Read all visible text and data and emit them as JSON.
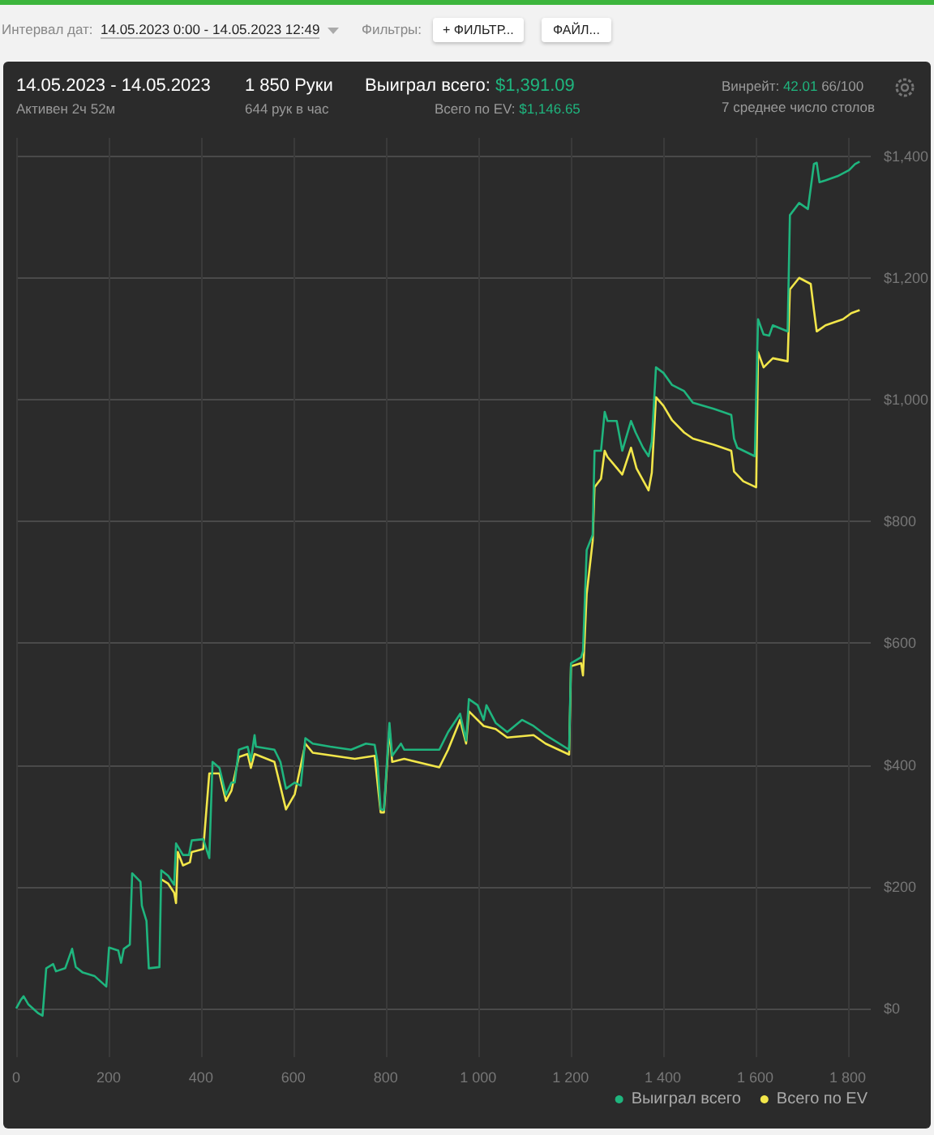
{
  "chart_data": {
    "type": "line",
    "title": "14.05.2023 - 14.05.2023",
    "annotations": [
      "Интервал дат:",
      "14.05.2023 0:00 - 14.05.2023 12:49",
      "Фильтры:",
      "+ ФИЛЬТР...",
      "ФАЙЛ...",
      "Активен 2ч 52м",
      "1 850 Руки",
      "644 рук в час",
      "Выиграл всего: $1,391.09",
      "Всего по EV: $1,146.65",
      "Винрейт: 42.01 66/100",
      "7 среднее число столов"
    ],
    "xlim": [
      0,
      1850
    ],
    "xticks": [
      0,
      200,
      400,
      600,
      800,
      {
        "value": 1000,
        "label": "1 000"
      },
      {
        "value": 1200,
        "label": "1 200"
      },
      {
        "value": 1400,
        "label": "1 400"
      },
      {
        "value": 1600,
        "label": "1 600"
      },
      {
        "value": 1800,
        "label": "1 800"
      }
    ],
    "ylim": [
      -80,
      1430
    ],
    "yticks": [
      {
        "value": 0,
        "label": "$0"
      },
      {
        "value": 200,
        "label": "$200"
      },
      {
        "value": 400,
        "label": "$400"
      },
      {
        "value": 600,
        "label": "$600"
      },
      {
        "value": 800,
        "label": "$800"
      },
      {
        "value": 1000,
        "label": "$1,000"
      },
      {
        "value": 1200,
        "label": "$1,200"
      },
      {
        "value": 1400,
        "label": "$1,400"
      }
    ],
    "grid": true,
    "legend": "bottom right",
    "marker": "none",
    "series": [
      {
        "name": "Выиграл всего",
        "color": "#1fb57e",
        "x": [
          0,
          10,
          16,
          26,
          48,
          57,
          65,
          80,
          86,
          106,
          121,
          129,
          144,
          170,
          195,
          201,
          221,
          227,
          233,
          246,
          251,
          269,
          272,
          282,
          287,
          310,
          314,
          329,
          342,
          346,
          361,
          374,
          380,
          405,
          418,
          425,
          440,
          454,
          466,
          473,
          482,
          501,
          508,
          516,
          519,
          559,
          572,
          584,
          603,
          616,
          626,
          642,
          680,
          725,
          757,
          776,
          782,
          789,
          796,
          808,
          814,
          833,
          840,
          916,
          935,
          961,
          974,
          980,
          999,
          1012,
          1018,
          1038,
          1063,
          1095,
          1120,
          1146,
          1197,
          1201,
          1223,
          1227,
          1235,
          1248,
          1252,
          1266,
          1274,
          1280,
          1300,
          1312,
          1331,
          1341,
          1357,
          1369,
          1376,
          1385,
          1401,
          1420,
          1446,
          1465,
          1510,
          1548,
          1554,
          1561,
          1599,
          1606,
          1618,
          1630,
          1638,
          1670,
          1675,
          1695,
          1714,
          1727,
          1733,
          1739,
          1752,
          1778,
          1803,
          1816,
          1826
        ],
        "values": [
          0,
          14,
          20,
          7,
          -8,
          -12,
          66,
          73,
          61,
          66,
          98,
          68,
          59,
          53,
          36,
          100,
          95,
          75,
          98,
          105,
          222,
          208,
          169,
          144,
          66,
          68,
          227,
          218,
          203,
          271,
          252,
          252,
          276,
          278,
          247,
          405,
          395,
          351,
          371,
          371,
          425,
          430,
          407,
          449,
          430,
          425,
          405,
          361,
          371,
          366,
          444,
          435,
          430,
          425,
          435,
          433,
          405,
          327,
          326,
          469,
          415,
          435,
          425,
          425,
          454,
          484,
          440,
          508,
          498,
          474,
          498,
          469,
          454,
          474,
          464,
          449,
          425,
          567,
          577,
          587,
          753,
          778,
          916,
          916,
          980,
          965,
          965,
          916,
          965,
          946,
          921,
          907,
          931,
          1053,
          1044,
          1024,
          1014,
          995,
          985,
          975,
          936,
          921,
          907,
          1132,
          1107,
          1105,
          1122,
          1112,
          1303,
          1323,
          1313,
          1387,
          1389,
          1357,
          1360,
          1367,
          1377,
          1387,
          1391
        ]
      },
      {
        "name": "Всего по EV",
        "color": "#f2e64a",
        "x": [
          314,
          329,
          342,
          346,
          350,
          361,
          376,
          380,
          405,
          418,
          440,
          454,
          466,
          482,
          501,
          508,
          516,
          559,
          584,
          603,
          626,
          642,
          733,
          776,
          789,
          796,
          808,
          814,
          840,
          916,
          935,
          961,
          974,
          980,
          1012,
          1038,
          1063,
          1120,
          1146,
          1197,
          1201,
          1223,
          1227,
          1235,
          1248,
          1252,
          1266,
          1274,
          1280,
          1312,
          1331,
          1343,
          1369,
          1376,
          1385,
          1401,
          1420,
          1446,
          1465,
          1510,
          1548,
          1554,
          1574,
          1602,
          1606,
          1618,
          1638,
          1670,
          1675,
          1695,
          1720,
          1727,
          1733,
          1752,
          1790,
          1808,
          1826
        ],
        "values": [
          212,
          205,
          190,
          173,
          257,
          235,
          240,
          257,
          262,
          386,
          386,
          341,
          358,
          413,
          418,
          395,
          418,
          405,
          327,
          352,
          435,
          420,
          410,
          415,
          322,
          322,
          459,
          405,
          410,
          396,
          425,
          474,
          435,
          488,
          464,
          459,
          445,
          449,
          435,
          417,
          562,
          567,
          547,
          681,
          768,
          856,
          870,
          916,
          906,
          877,
          921,
          887,
          851,
          880,
          1004,
          990,
          966,
          946,
          936,
          926,
          916,
          882,
          866,
          856,
          1078,
          1053,
          1068,
          1063,
          1181,
          1200,
          1190,
          1147,
          1112,
          1122,
          1132,
          1142,
          1147
        ]
      }
    ]
  }
}
